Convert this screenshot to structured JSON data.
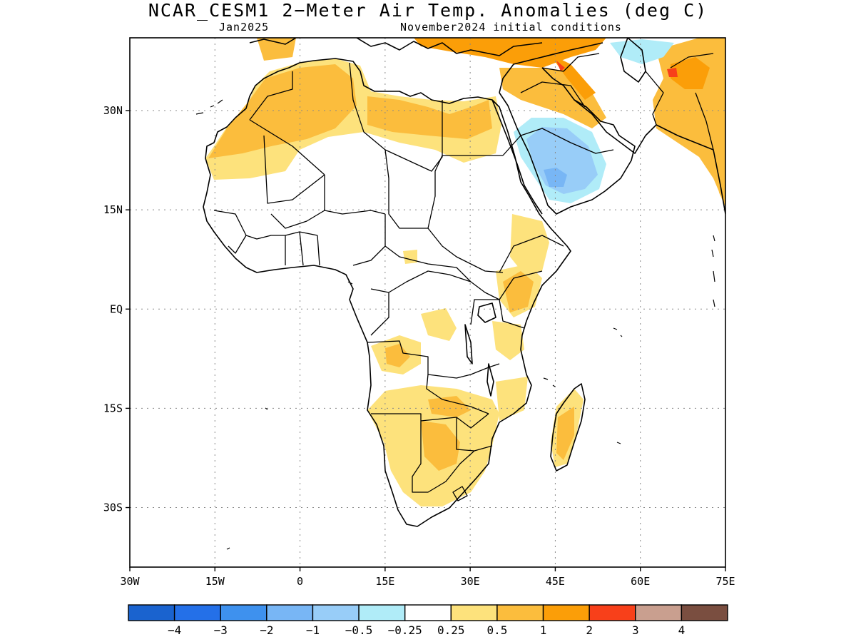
{
  "title": "NCAR_CESM1 2−Meter Air Temp. Anomalies (deg C)",
  "subtitle_left": "Jan2025",
  "subtitle_right": "November2024 initial conditions",
  "map": {
    "lon_range": [
      -30,
      75
    ],
    "lat_range": [
      -39,
      41
    ],
    "lat_ticks": [
      {
        "value": 30,
        "label": "30N"
      },
      {
        "value": 15,
        "label": "15N"
      },
      {
        "value": 0,
        "label": "EQ"
      },
      {
        "value": -15,
        "label": "15S"
      },
      {
        "value": -30,
        "label": "30S"
      }
    ],
    "lon_ticks": [
      {
        "value": -30,
        "label": "30W"
      },
      {
        "value": -15,
        "label": "15W"
      },
      {
        "value": 0,
        "label": "0"
      },
      {
        "value": 15,
        "label": "15E"
      },
      {
        "value": 30,
        "label": "30E"
      },
      {
        "value": 45,
        "label": "45E"
      },
      {
        "value": 60,
        "label": "60E"
      },
      {
        "value": 75,
        "label": "75E"
      }
    ],
    "grid": "dotted"
  },
  "colorbar": {
    "colors": [
      "#1a63cf",
      "#2470e8",
      "#3e91ee",
      "#78b6f5",
      "#98cdf8",
      "#b0ecf8",
      "#ffffff",
      "#fde27c",
      "#fbbd3d",
      "#fb9e08",
      "#f8401a",
      "#c99f8f",
      "#7a4e40"
    ],
    "labels": [
      "−4",
      "−3",
      "−2",
      "−1",
      "−0.5",
      "−0.25",
      "0.25",
      "0.5",
      "1",
      "2",
      "3",
      "4"
    ]
  }
}
